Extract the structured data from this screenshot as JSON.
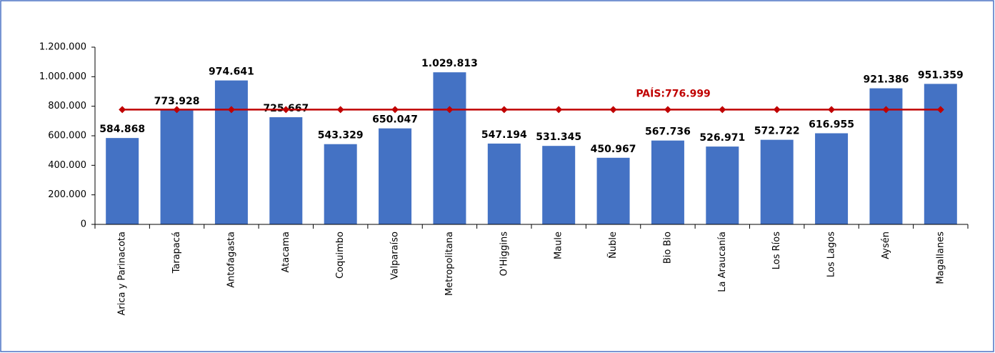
{
  "chart_data": {
    "type": "bar",
    "categories": [
      "Arica y Parinacota",
      "Tarapacá",
      "Antofagasta",
      "Atacama",
      "Coquimbo",
      "Valparaíso",
      "Metropolitana",
      "O'Higgins",
      "Maule",
      "Ñuble",
      "Bio Bio",
      "La Araucanía",
      "Los Ríos",
      "Los Lagos",
      "Aysén",
      "Magallanes"
    ],
    "series": [
      {
        "type": "bar",
        "color": "#4472c4",
        "values": [
          584868,
          773928,
          974641,
          725667,
          543329,
          650047,
          1029813,
          547194,
          531345,
          450967,
          567736,
          526971,
          572722,
          616955,
          921386,
          951359
        ],
        "value_labels": [
          "584.868",
          "773.928",
          "974.641",
          "725.667",
          "543.329",
          "650.047",
          "1.029.813",
          "547.194",
          "531.345",
          "450.967",
          "567.736",
          "526.971",
          "572.722",
          "616.955",
          "921.386",
          "951.359"
        ]
      },
      {
        "type": "line",
        "color": "#c00000",
        "values": [
          776999,
          776999,
          776999,
          776999,
          776999,
          776999,
          776999,
          776999,
          776999,
          776999,
          776999,
          776999,
          776999,
          776999,
          776999,
          776999
        ]
      }
    ],
    "annotation": "PAÍS:776.999",
    "ylim": [
      0,
      1200000
    ],
    "yticks": [
      0,
      {
        "value": 200000,
        "label": "200.000"
      },
      {
        "value": 400000,
        "label": "400.000"
      },
      {
        "value": 600000,
        "label": "600.000"
      },
      {
        "value": 800000,
        "label": "800.000"
      },
      {
        "value": 1000000,
        "label": "1.000.000"
      },
      {
        "value": 1200000,
        "label": "1.200.000"
      }
    ]
  }
}
